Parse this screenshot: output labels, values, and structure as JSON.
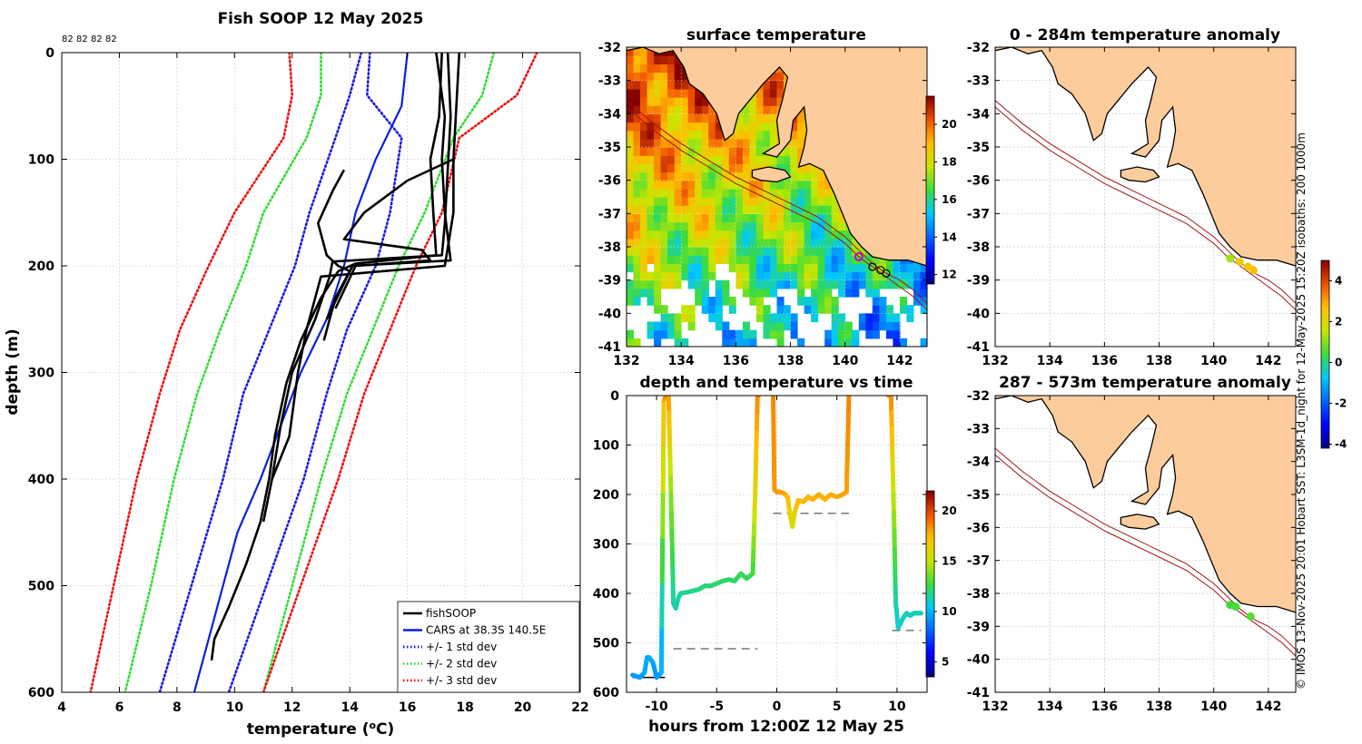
{
  "chart_data": [
    {
      "id": "profile",
      "type": "line",
      "title": "Fish SOOP 12 May 2025",
      "xlabel": "temperature (",
      "xlabel_sup": "o",
      "xlabel_end": "C)",
      "ylabel": "depth (m)",
      "xlim": [
        4,
        22
      ],
      "ylim": [
        600,
        0
      ],
      "xticks": [
        4,
        6,
        8,
        10,
        12,
        14,
        16,
        18,
        20,
        22
      ],
      "yticks": [
        0,
        100,
        200,
        300,
        400,
        500,
        600
      ],
      "count_labels": [
        "82",
        "82",
        "82",
        "82"
      ],
      "legend": {
        "position": "bottom-right",
        "entries": [
          {
            "label": "fishSOOP",
            "color": "#000000",
            "style": "solid"
          },
          {
            "label": "CARS at 38.3S 140.5E",
            "color": "#0a1fe0",
            "style": "solid"
          },
          {
            "label": "+/- 1 std dev",
            "color": "#1a1ae6",
            "style": "dotted"
          },
          {
            "label": "+/- 2 std dev",
            "color": "#33dd33",
            "style": "dotted"
          },
          {
            "label": "+/- 3 std dev",
            "color": "#ee1111",
            "style": "dotted"
          }
        ]
      },
      "cars_mean": {
        "depth": [
          0,
          50,
          100,
          150,
          200,
          250,
          300,
          350,
          400,
          450,
          500,
          550,
          600
        ],
        "temp": [
          16.0,
          15.8,
          14.9,
          14.2,
          13.8,
          13.2,
          12.3,
          11.6,
          10.9,
          10.1,
          9.6,
          9.1,
          8.6
        ]
      },
      "std_bands": [
        {
          "name": "+/- 1 std dev",
          "color": "#1a1ae6",
          "left": {
            "depth": [
              0,
              40,
              80,
              150,
              200,
              260,
              320,
              400,
              500,
              600
            ],
            "temp": [
              14.4,
              14.0,
              13.5,
              12.6,
              12.1,
              11.2,
              10.3,
              9.6,
              8.5,
              7.4
            ]
          },
          "right": {
            "depth": [
              0,
              40,
              80,
              150,
              200,
              260,
              320,
              400,
              500,
              600
            ],
            "temp": [
              14.7,
              14.6,
              15.8,
              15.4,
              14.9,
              13.9,
              13.2,
              12.4,
              11.1,
              9.8
            ]
          }
        },
        {
          "name": "+/- 2 std dev",
          "color": "#33dd33",
          "left": {
            "depth": [
              0,
              40,
              80,
              150,
              200,
              260,
              320,
              400,
              500,
              600
            ],
            "temp": [
              13.0,
              13.0,
              12.5,
              11.0,
              10.4,
              9.5,
              8.7,
              7.9,
              7.1,
              6.2
            ]
          },
          "right": {
            "depth": [
              0,
              40,
              80,
              150,
              200,
              260,
              320,
              400,
              500,
              600
            ],
            "temp": [
              19.0,
              18.6,
              17.6,
              16.6,
              15.7,
              14.8,
              13.9,
              13.0,
              12.0,
              11.0
            ]
          }
        },
        {
          "name": "+/- 3 std dev",
          "color": "#ee1111",
          "left": {
            "depth": [
              0,
              40,
              80,
              150,
              200,
              260,
              320,
              400,
              500,
              600
            ],
            "temp": [
              11.9,
              12.0,
              11.7,
              10.0,
              9.1,
              8.1,
              7.4,
              6.6,
              5.8,
              5.0
            ]
          },
          "right": {
            "depth": [
              0,
              40,
              80,
              150,
              200,
              260,
              320,
              400,
              500,
              600
            ],
            "temp": [
              20.5,
              19.8,
              17.8,
              17.2,
              16.3,
              15.4,
              14.5,
              13.6,
              12.3,
              11.0
            ]
          }
        }
      ],
      "fishsoop_profiles": [
        {
          "depth": [
            0,
            60,
            100,
            150,
            190,
            198,
            205,
            230,
            270,
            310,
            360,
            400,
            440,
            480,
            520,
            550,
            570
          ],
          "temp": [
            17.2,
            17.1,
            16.8,
            16.9,
            17.0,
            14.2,
            13.6,
            13.0,
            12.3,
            11.8,
            11.4,
            11.2,
            10.9,
            10.4,
            9.8,
            9.3,
            9.2
          ]
        },
        {
          "depth": [
            0,
            60,
            110,
            160,
            190,
            196,
            210,
            250,
            300,
            350,
            400,
            440
          ],
          "temp": [
            17.4,
            17.5,
            17.4,
            17.3,
            17.2,
            13.4,
            13.3,
            12.8,
            12.0,
            11.6,
            11.3,
            11.0
          ]
        },
        {
          "depth": [
            0,
            50,
            100,
            150,
            200,
            210,
            260,
            300,
            360,
            400
          ],
          "temp": [
            17.8,
            17.7,
            17.6,
            17.6,
            17.3,
            13.0,
            12.5,
            12.2,
            11.9,
            11.3
          ]
        },
        {
          "depth": [
            0,
            60,
            100,
            150,
            195,
            200,
            230,
            270
          ],
          "temp": [
            17.0,
            17.3,
            17.2,
            17.3,
            17.5,
            14.1,
            13.5,
            13.1
          ]
        },
        {
          "depth": [
            110,
            130,
            160,
            190,
            200,
            205,
            250
          ],
          "temp": [
            13.8,
            13.4,
            12.9,
            13.2,
            13.6,
            14.0,
            13.2
          ]
        },
        {
          "depth": [
            100,
            120,
            150,
            175,
            185,
            195,
            200,
            240
          ],
          "temp": [
            17.6,
            16.0,
            14.5,
            13.8,
            16.5,
            16.8,
            14.2,
            13.5
          ]
        }
      ]
    },
    {
      "id": "sst_map",
      "type": "heatmap",
      "title": "surface temperature",
      "xlim": [
        132,
        143
      ],
      "ylim": [
        -41,
        -32
      ],
      "xticks": [
        132,
        134,
        136,
        138,
        140,
        142
      ],
      "yticks": [
        -32,
        -33,
        -34,
        -35,
        -36,
        -37,
        -38,
        -39,
        -40,
        -41
      ],
      "colorbar": {
        "min": 11.5,
        "max": 21.5,
        "ticks": [
          12,
          14,
          16,
          18,
          20
        ]
      },
      "profile_locations": {
        "lon": [
          140.5,
          141.0,
          141.3,
          141.5
        ],
        "lat": [
          -38.3,
          -38.6,
          -38.7,
          -38.8
        ]
      }
    },
    {
      "id": "depth_time",
      "type": "scatter",
      "title": "depth and temperature vs time",
      "xlabel": "hours from 12:00Z 12 May 25",
      "xlim": [
        -12.5,
        12.5
      ],
      "ylim": [
        600,
        0
      ],
      "xticks": [
        -10,
        -5,
        0,
        5,
        10
      ],
      "yticks": [
        0,
        100,
        200,
        300,
        400,
        500,
        600
      ],
      "colorbar": {
        "min": 3.5,
        "max": 22.0,
        "ticks": [
          5,
          10,
          15,
          20
        ]
      },
      "segments": [
        {
          "t": [
            -12.0,
            -11.4,
            -11.0,
            -10.8,
            -10.6,
            -10.3,
            -10.0,
            -9.6,
            -9.4,
            -9.2,
            -9.0
          ],
          "depth": [
            565,
            570,
            560,
            530,
            530,
            540,
            570,
            560,
            10,
            0,
            0
          ],
          "temp": [
            9.5,
            9.4,
            9.6,
            9.8,
            9.8,
            9.6,
            9.3,
            9.3,
            17.5,
            18.5,
            18.5
          ]
        },
        {
          "t": [
            -9.0,
            -8.8,
            -8.6,
            -8.4,
            -8.2,
            -8.0,
            -7.5,
            -7.0,
            -6.5,
            -6.0,
            -5.5,
            -5.0,
            -4.5,
            -4.0,
            -3.5,
            -3.0,
            -2.5,
            -2.0,
            -1.8,
            -1.6,
            -1.5
          ],
          "depth": [
            0,
            200,
            420,
            430,
            410,
            400,
            398,
            395,
            392,
            385,
            385,
            380,
            375,
            372,
            375,
            360,
            370,
            360,
            200,
            0,
            0
          ],
          "temp": [
            18.3,
            14.0,
            11.5,
            11.3,
            11.5,
            11.6,
            11.8,
            11.8,
            11.9,
            12.0,
            12.1,
            12.1,
            12.2,
            12.3,
            12.2,
            12.4,
            12.3,
            12.5,
            16.0,
            18.5,
            18.5
          ]
        },
        {
          "t": [
            -0.3,
            -0.2,
            0.0,
            0.3,
            0.6,
            0.9,
            1.1,
            1.3,
            1.5,
            1.8,
            2.2,
            2.6,
            3.0,
            3.5,
            4.0,
            4.5,
            5.0,
            5.5,
            5.8,
            6.0
          ],
          "depth": [
            0,
            190,
            195,
            195,
            198,
            205,
            240,
            265,
            235,
            212,
            215,
            205,
            210,
            200,
            210,
            200,
            205,
            200,
            195,
            0
          ],
          "temp": [
            18.5,
            18.2,
            18.2,
            18.1,
            18.0,
            17.5,
            16.0,
            15.5,
            16.5,
            17.5,
            17.4,
            17.6,
            17.5,
            17.8,
            17.6,
            17.8,
            17.7,
            17.9,
            18.0,
            18.6
          ]
        },
        {
          "t": [
            9.3,
            9.5,
            9.7,
            9.9,
            10.1,
            10.3,
            10.5,
            10.8,
            11.1,
            11.4,
            11.7,
            12.0
          ],
          "depth": [
            0,
            0,
            200,
            420,
            470,
            460,
            450,
            440,
            445,
            440,
            440,
            440
          ],
          "temp": [
            18.6,
            18.6,
            15.0,
            11.5,
            11.0,
            11.1,
            11.2,
            11.3,
            11.2,
            11.3,
            11.3,
            11.3
          ]
        }
      ],
      "bottom_marks": [
        {
          "t0": -8.6,
          "t1": -1.6,
          "depth": 512
        },
        {
          "t0": -0.3,
          "t1": 6.0,
          "depth": 238
        },
        {
          "t0": 9.6,
          "t1": 12.0,
          "depth": 475
        },
        {
          "t0": -12.0,
          "t1": -9.3,
          "depth": 570
        }
      ]
    },
    {
      "id": "anom_shallow",
      "type": "scatter",
      "title": "0 - 284m temperature anomaly",
      "xlim": [
        132,
        143
      ],
      "ylim": [
        -41,
        -32
      ],
      "xticks": [
        132,
        134,
        136,
        138,
        140,
        142
      ],
      "yticks": [
        -32,
        -33,
        -34,
        -35,
        -36,
        -37,
        -38,
        -39,
        -40,
        -41
      ],
      "points": [
        {
          "lon": 140.6,
          "lat": -38.35,
          "value": 1.2
        },
        {
          "lon": 140.95,
          "lat": -38.45,
          "value": 2.3
        },
        {
          "lon": 141.25,
          "lat": -38.6,
          "value": 2.5
        },
        {
          "lon": 141.45,
          "lat": -38.7,
          "value": 2.6
        }
      ]
    },
    {
      "id": "anom_deep",
      "type": "scatter",
      "title": "287 - 573m temperature anomaly",
      "xlim": [
        132,
        143
      ],
      "ylim": [
        -41,
        -32
      ],
      "xticks": [
        132,
        134,
        136,
        138,
        140,
        142
      ],
      "yticks": [
        -32,
        -33,
        -34,
        -35,
        -36,
        -37,
        -38,
        -39,
        -40,
        -41
      ],
      "colorbar": {
        "min": -4.2,
        "max": 5.0,
        "ticks": [
          -4,
          -2,
          0,
          2,
          4
        ]
      },
      "points": [
        {
          "lon": 140.6,
          "lat": -38.35,
          "value": 0.4
        },
        {
          "lon": 140.8,
          "lat": -38.4,
          "value": 0.5
        },
        {
          "lon": 141.35,
          "lat": -38.7,
          "value": 0.6
        }
      ]
    }
  ],
  "credit": "© IMOS 13-Nov-2025 20:01 Hobart SST: L3SM-1d_night for 12-May-2025 15:20Z isobaths: 200  1000m",
  "colors": {
    "land": "#fccc9c",
    "isobath": "#a01515",
    "grid": "#d8d8d8"
  }
}
